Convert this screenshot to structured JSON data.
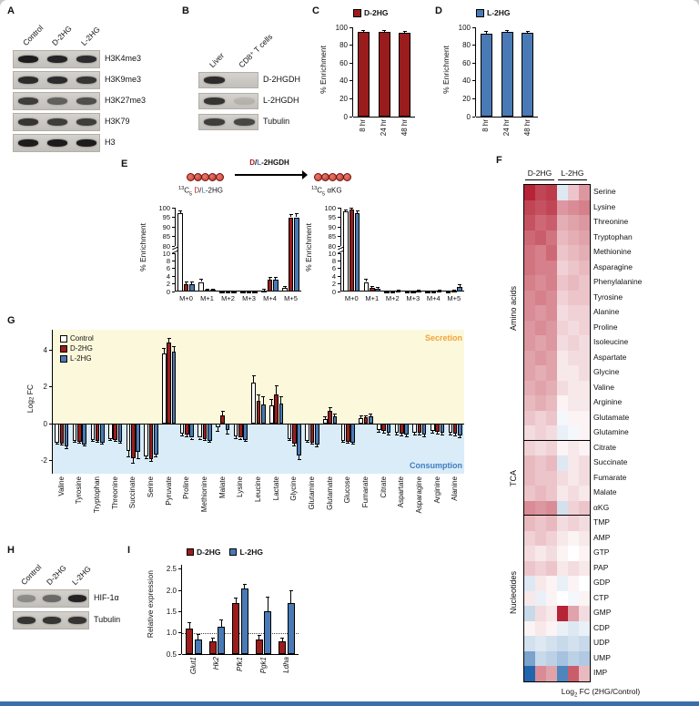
{
  "colors": {
    "d2hg": "#9B1C1C",
    "l2hg": "#4A7AB5",
    "control": "#FFFFFF",
    "heat_pos": "#B2182B",
    "heat_neg": "#2166AC",
    "secretion_bg": "#FCF8DC",
    "consumption_bg": "#D9ECF8",
    "secretion_text": "#F2A33C",
    "consumption_text": "#3E7EC1",
    "band": "#1C1C1C",
    "blot_bg": "#CCC9C4",
    "bottom_bar": "#3A6EA8"
  },
  "panelA": {
    "label": "A",
    "lanes": [
      "Control",
      "D-2HG",
      "L-2HG"
    ],
    "rows": [
      {
        "label": "H3K4me3",
        "bands": [
          1,
          0.95,
          0.9
        ]
      },
      {
        "label": "H3K9me3",
        "bands": [
          0.9,
          0.9,
          0.85
        ]
      },
      {
        "label": "H3K27me3",
        "bands": [
          0.8,
          0.6,
          0.7
        ]
      },
      {
        "label": "H3K79",
        "bands": [
          0.85,
          0.8,
          0.8
        ]
      },
      {
        "label": "H3",
        "bands": [
          1,
          1,
          1
        ]
      }
    ]
  },
  "panelB": {
    "label": "B",
    "lanes": [
      "Liver",
      "CD8⁺ T cells"
    ],
    "rows": [
      {
        "label": "D-2HGDH",
        "bands": [
          0.9,
          0
        ]
      },
      {
        "label": "L-2HGDH",
        "bands": [
          0.85,
          0.12
        ]
      },
      {
        "label": "Tubulin",
        "bands": [
          0.8,
          0.75
        ]
      }
    ]
  },
  "panelC": {
    "label": "C",
    "legend": "D-2HG",
    "ylabel": "% Enrichment",
    "categories": [
      "8 hr",
      "24 hr",
      "48 hr"
    ],
    "values": [
      95,
      95,
      94
    ],
    "err": [
      1.5,
      1,
      1
    ],
    "yticks": [
      0,
      20,
      40,
      60,
      80,
      100
    ]
  },
  "panelD": {
    "label": "D",
    "legend": "L-2HG",
    "ylabel": "% Enrichment",
    "categories": [
      "8 hr",
      "24 hr",
      "48 hr"
    ],
    "values": [
      93,
      95,
      94
    ],
    "err": [
      2,
      1.5,
      1.5
    ],
    "yticks": [
      0,
      20,
      40,
      60,
      80,
      100
    ]
  },
  "panelE": {
    "label": "E",
    "ylabel": "% Enrichment",
    "schematic": {
      "iso_sup": "13",
      "iso_c": "C",
      "iso_sub": "5",
      "substrate_d": " D",
      "slash": "/",
      "substrate_l": "L",
      "substrate_rest": "-2HG",
      "product": " αKG",
      "enzyme_d": "D",
      "enzyme_l": "L",
      "enzyme_rest": "-2HGDH",
      "bead_colors": [
        "#C44536",
        "#A93226",
        "#C44536",
        "#A93226",
        "#C44536"
      ]
    },
    "left": {
      "categories": [
        "M+0",
        "M+1",
        "M+2",
        "M+3",
        "M+4",
        "M+5"
      ],
      "top_ticks": [
        100,
        95,
        90,
        85,
        80
      ],
      "bottom_ticks": [
        10,
        8,
        6,
        4,
        2,
        0
      ],
      "series": [
        {
          "name": "Control",
          "values": [
            97,
            2.5,
            0.1,
            0.1,
            0.3,
            1.0
          ],
          "err": [
            1.2,
            0.6,
            0,
            0,
            0.2,
            0.3
          ]
        },
        {
          "name": "D-2HG",
          "values": [
            2,
            0.4,
            0.1,
            0.1,
            3,
            95
          ],
          "err": [
            0.5,
            0.2,
            0,
            0,
            0.6,
            1.5
          ]
        },
        {
          "name": "L-2HG",
          "values": [
            2,
            0.4,
            0.1,
            0.1,
            3,
            95
          ],
          "err": [
            0.5,
            0.2,
            0,
            0,
            0.6,
            1.8
          ]
        }
      ]
    },
    "right": {
      "categories": [
        "M+0",
        "M+1",
        "M+2",
        "M+3",
        "M+4",
        "M+5"
      ],
      "top_ticks": [
        100,
        95,
        90,
        85,
        80
      ],
      "bottom_ticks": [
        10,
        8,
        6,
        4,
        2,
        0
      ],
      "series": [
        {
          "name": "Control",
          "values": [
            98,
            2.5,
            0.1,
            0.1,
            0.1,
            0.1
          ],
          "err": [
            1.0,
            0.6,
            0,
            0,
            0,
            0
          ]
        },
        {
          "name": "D-2HG",
          "values": [
            99,
            1,
            0.1,
            0.1,
            0.1,
            0.2
          ],
          "err": [
            0.8,
            0.3,
            0,
            0,
            0,
            0.1
          ]
        },
        {
          "name": "L-2HG",
          "values": [
            97,
            0.8,
            0.2,
            0.2,
            0.3,
            1.3
          ],
          "err": [
            1.2,
            0.3,
            0.1,
            0.1,
            0.15,
            0.5
          ]
        }
      ]
    }
  },
  "panelF": {
    "label": "F",
    "col_groups": [
      "D-2HG",
      "L-2HG"
    ],
    "footer_parts": {
      "pre": "Log",
      "sub": "2",
      "post": " FC (2HG/Control)"
    },
    "groups": [
      {
        "name": "Amino acids",
        "rows": [
          {
            "label": "Serine",
            "values": [
              1.9,
              1.6,
              1.7,
              -0.3,
              0.5,
              0.9
            ]
          },
          {
            "label": "Lysine",
            "values": [
              1.6,
              1.5,
              1.6,
              0.9,
              1.0,
              1.1
            ]
          },
          {
            "label": "Threonine",
            "values": [
              1.5,
              1.3,
              1.4,
              0.7,
              0.8,
              0.9
            ]
          },
          {
            "label": "Tryptophan",
            "values": [
              1.3,
              1.4,
              1.2,
              0.6,
              0.7,
              0.8
            ]
          },
          {
            "label": "Methionine",
            "values": [
              1.2,
              1.1,
              1.3,
              0.5,
              0.6,
              0.7
            ]
          },
          {
            "label": "Asparagine",
            "values": [
              1.2,
              1.1,
              1.1,
              0.4,
              0.5,
              0.6
            ]
          },
          {
            "label": "Phenylalanine",
            "values": [
              1.1,
              1.0,
              1.1,
              0.5,
              0.6,
              0.5
            ]
          },
          {
            "label": "Tyrosine",
            "values": [
              1.0,
              1.1,
              1.0,
              0.4,
              0.5,
              0.5
            ]
          },
          {
            "label": "Alanine",
            "values": [
              1.0,
              0.9,
              1.0,
              0.3,
              0.4,
              0.4
            ]
          },
          {
            "label": "Proline",
            "values": [
              0.9,
              1.0,
              0.9,
              0.4,
              0.3,
              0.4
            ]
          },
          {
            "label": "Isoleucine",
            "values": [
              0.9,
              0.8,
              0.9,
              0.3,
              0.4,
              0.3
            ]
          },
          {
            "label": "Aspartate",
            "values": [
              0.8,
              0.9,
              0.8,
              0.2,
              0.3,
              0.3
            ]
          },
          {
            "label": "Glycine",
            "values": [
              0.8,
              0.7,
              0.8,
              0.2,
              0.2,
              0.3
            ]
          },
          {
            "label": "Valine",
            "values": [
              0.7,
              0.8,
              0.7,
              0.3,
              0.2,
              0.2
            ]
          },
          {
            "label": "Arginine",
            "values": [
              0.6,
              0.7,
              0.6,
              0.1,
              0.2,
              0.2
            ]
          },
          {
            "label": "Glutamate",
            "values": [
              0.5,
              0.4,
              0.5,
              -0.1,
              0.1,
              0.1
            ]
          },
          {
            "label": "Glutamine",
            "values": [
              0.3,
              0.4,
              0.3,
              -0.2,
              -0.1,
              0.1
            ]
          }
        ]
      },
      {
        "name": "TCA",
        "rows": [
          {
            "label": "Citrate",
            "values": [
              0.4,
              0.3,
              0.4,
              0.1,
              0.2,
              0.1
            ]
          },
          {
            "label": "Succinate",
            "values": [
              0.6,
              0.5,
              0.6,
              -0.3,
              0.2,
              0.3
            ]
          },
          {
            "label": "Fumarate",
            "values": [
              0.6,
              0.5,
              0.5,
              0.3,
              0.2,
              0.3
            ]
          },
          {
            "label": "Malate",
            "values": [
              0.5,
              0.6,
              0.5,
              0.2,
              0.3,
              0.2
            ]
          },
          {
            "label": "αKG",
            "values": [
              1.0,
              0.9,
              1.0,
              -0.4,
              0.4,
              0.5
            ]
          }
        ]
      },
      {
        "name": "Nucleotides",
        "rows": [
          {
            "label": "TMP",
            "values": [
              0.6,
              0.5,
              0.6,
              0.3,
              0.4,
              0.3
            ]
          },
          {
            "label": "AMP",
            "values": [
              0.4,
              0.5,
              0.4,
              0.2,
              0.1,
              0.2
            ]
          },
          {
            "label": "GTP",
            "values": [
              0.3,
              0.2,
              0.3,
              0.1,
              0.0,
              0.1
            ]
          },
          {
            "label": "PAP",
            "values": [
              0.5,
              0.4,
              0.5,
              0.2,
              0.3,
              0.2
            ]
          },
          {
            "label": "GDP",
            "values": [
              -0.3,
              0.2,
              0.1,
              -0.2,
              0.1,
              0.0
            ]
          },
          {
            "label": "CTP",
            "values": [
              0.2,
              -0.2,
              0.1,
              0.0,
              -0.1,
              0.1
            ]
          },
          {
            "label": "GMP",
            "values": [
              -0.5,
              0.3,
              0.2,
              1.9,
              0.8,
              0.3
            ]
          },
          {
            "label": "CDP",
            "values": [
              0.1,
              0.2,
              0.1,
              -0.2,
              -0.3,
              -0.2
            ]
          },
          {
            "label": "UDP",
            "values": [
              -0.4,
              -0.3,
              -0.4,
              -0.5,
              -0.4,
              -0.5
            ]
          },
          {
            "label": "UMP",
            "values": [
              -1.2,
              -0.5,
              -0.6,
              -0.8,
              -0.6,
              -0.7
            ]
          },
          {
            "label": "IMP",
            "values": [
              -2.0,
              1.0,
              0.8,
              -1.6,
              1.4,
              0.6
            ]
          }
        ]
      }
    ]
  },
  "panelG": {
    "label": "G",
    "ylabel_parts": {
      "pre": "Log",
      "sub": "2",
      "post": " FC"
    },
    "secretion": "Secretion",
    "consumption": "Consumption",
    "categories": [
      "Valine",
      "Tyrosine",
      "Tryptophan",
      "Threonine",
      "Succinate",
      "Serine",
      "Pyruvate",
      "Proline",
      "Methionine",
      "Malate",
      "Lysine",
      "Leucine",
      "Lactate",
      "Glycine",
      "Glutamine",
      "Glutamate",
      "Glucose",
      "Fumarate",
      "Citrate",
      "Aspartate",
      "Asparagine",
      "Arginine",
      "Alanine"
    ],
    "yticks": [
      -2,
      0,
      2,
      4
    ],
    "series": [
      {
        "name": "Control",
        "values": [
          -1.0,
          -0.9,
          -0.85,
          -0.8,
          -1.45,
          -1.75,
          3.8,
          -0.55,
          -0.75,
          -0.2,
          -0.7,
          2.25,
          1.0,
          -0.8,
          -0.9,
          0.25,
          -0.9,
          0.3,
          -0.35,
          -0.5,
          -0.5,
          -0.4,
          -0.5
        ],
        "err": [
          0.1,
          0.08,
          0.08,
          0.1,
          0.35,
          0.15,
          0.3,
          0.1,
          0.08,
          0.2,
          0.1,
          0.35,
          0.3,
          0.1,
          0.12,
          0.15,
          0.08,
          0.12,
          0.1,
          0.08,
          0.1,
          0.08,
          0.1
        ]
      },
      {
        "name": "D-2HG",
        "values": [
          -1.05,
          -0.95,
          -0.9,
          -0.85,
          -1.85,
          -1.9,
          4.4,
          -0.6,
          -0.8,
          0.45,
          -0.75,
          1.25,
          1.6,
          -1.05,
          -1.0,
          0.7,
          -0.95,
          0.35,
          -0.4,
          -0.55,
          -0.5,
          -0.45,
          -0.55
        ],
        "err": [
          0.1,
          0.08,
          0.1,
          0.08,
          0.3,
          0.12,
          0.25,
          0.1,
          0.1,
          0.25,
          0.08,
          0.3,
          0.45,
          0.12,
          0.1,
          0.2,
          0.08,
          0.1,
          0.1,
          0.1,
          0.08,
          0.1,
          0.1
        ]
      },
      {
        "name": "L-2HG",
        "values": [
          -1.2,
          -1.1,
          -1.0,
          -0.95,
          -1.5,
          -1.65,
          3.9,
          -0.75,
          -0.9,
          -0.35,
          -0.85,
          1.05,
          1.1,
          -1.7,
          -1.1,
          0.4,
          -1.0,
          0.4,
          -0.5,
          -0.6,
          -0.6,
          -0.5,
          -0.65
        ],
        "err": [
          0.12,
          0.1,
          0.08,
          0.1,
          0.4,
          0.15,
          0.3,
          0.12,
          0.1,
          0.2,
          0.1,
          0.4,
          0.35,
          0.25,
          0.12,
          0.15,
          0.1,
          0.12,
          0.1,
          0.1,
          0.1,
          0.08,
          0.12
        ]
      }
    ]
  },
  "panelH": {
    "label": "H",
    "lanes": [
      "Control",
      "D-2HG",
      "L-2HG"
    ],
    "rows": [
      {
        "label": "HIF-1α",
        "bands": [
          0.35,
          0.55,
          0.95
        ]
      },
      {
        "label": "Tubulin",
        "bands": [
          0.85,
          0.85,
          0.85
        ]
      }
    ]
  },
  "panelI": {
    "label": "I",
    "ylabel": "Relative expression",
    "categories": [
      "Glut1",
      "Hk2",
      "Pfk1",
      "Pgk1",
      "Ldha"
    ],
    "yticks": [
      0.5,
      1.0,
      1.5,
      2.0,
      2.5
    ],
    "series": [
      {
        "name": "D-2HG",
        "values": [
          1.1,
          0.8,
          1.7,
          0.85,
          0.8
        ],
        "err": [
          0.15,
          0.08,
          0.12,
          0.1,
          0.08
        ]
      },
      {
        "name": "L-2HG",
        "values": [
          0.85,
          1.15,
          2.05,
          1.5,
          1.7
        ],
        "err": [
          0.12,
          0.15,
          0.1,
          0.35,
          0.3
        ]
      }
    ]
  }
}
